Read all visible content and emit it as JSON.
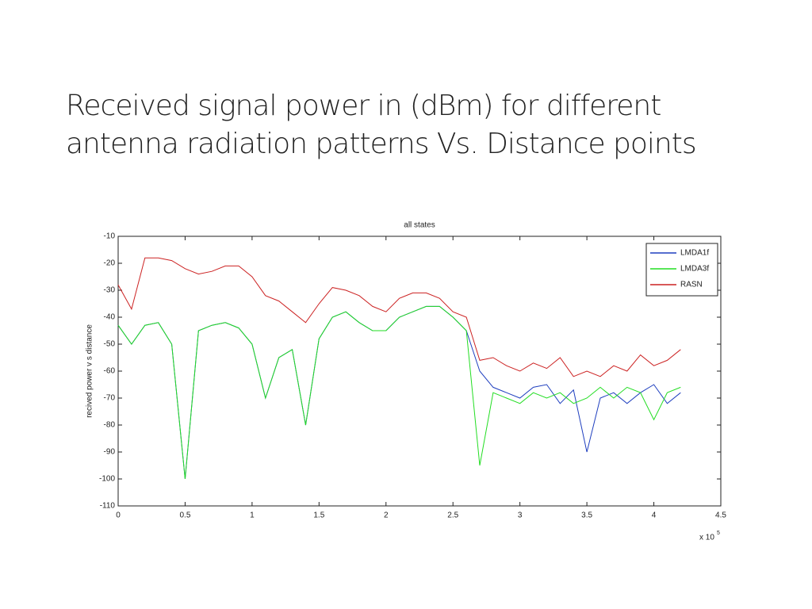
{
  "slide": {
    "title_lines": [
      "Received signal power in (dBm) for different",
      "antenna radiation patterns Vs.  Distance points"
    ]
  },
  "chart_data": {
    "type": "line",
    "title": "all states",
    "ylabel": "recived power v s distance",
    "x_multiplier": "x 10",
    "x_multiplier_exponent": "5",
    "x": [
      0,
      0.1,
      0.2,
      0.3,
      0.4,
      0.5,
      0.6,
      0.7,
      0.8,
      0.9,
      1.0,
      1.1,
      1.2,
      1.3,
      1.4,
      1.5,
      1.6,
      1.7,
      1.8,
      1.9,
      2.0,
      2.1,
      2.2,
      2.3,
      2.4,
      2.5,
      2.6,
      2.7,
      2.8,
      2.9,
      3.0,
      3.1,
      3.2,
      3.3,
      3.4,
      3.5,
      3.6,
      3.7,
      3.8,
      3.9,
      4.0,
      4.1,
      4.2
    ],
    "series": [
      {
        "name": "LMDA1f",
        "color": "#1f3fbf",
        "values": [
          -43,
          -50,
          -43,
          -42,
          -50,
          -100,
          -45,
          -43,
          -42,
          -44,
          -50,
          -70,
          -55,
          -52,
          -80,
          -48,
          -40,
          -38,
          -42,
          -45,
          -45,
          -40,
          -38,
          -36,
          -36,
          -40,
          -45,
          -60,
          -66,
          -68,
          -70,
          -66,
          -65,
          -72,
          -67,
          -90,
          -70,
          -68,
          -72,
          -68,
          -65,
          -72,
          -68
        ]
      },
      {
        "name": "LMDA3f",
        "color": "#22dd22",
        "values": [
          -43,
          -50,
          -43,
          -42,
          -50,
          -100,
          -45,
          -43,
          -42,
          -44,
          -50,
          -70,
          -55,
          -52,
          -80,
          -48,
          -40,
          -38,
          -42,
          -45,
          -45,
          -40,
          -38,
          -36,
          -36,
          -40,
          -45,
          -95,
          -68,
          -70,
          -72,
          -68,
          -70,
          -68,
          -72,
          -70,
          -66,
          -70,
          -66,
          -68,
          -78,
          -68,
          -66
        ]
      },
      {
        "name": "RASN",
        "color": "#cc2222",
        "values": [
          -28,
          -37,
          -18,
          -18,
          -19,
          -22,
          -24,
          -23,
          -21,
          -21,
          -25,
          -32,
          -34,
          -38,
          -42,
          -35,
          -29,
          -30,
          -32,
          -36,
          -38,
          -33,
          -31,
          -31,
          -33,
          -38,
          -40,
          -56,
          -55,
          -58,
          -60,
          -57,
          -59,
          -55,
          -62,
          -60,
          -62,
          -58,
          -60,
          -54,
          -58,
          -56,
          -52
        ]
      }
    ],
    "xlim": [
      0,
      4.5
    ],
    "xticks": [
      0,
      0.5,
      1,
      1.5,
      2,
      2.5,
      3,
      3.5,
      4,
      4.5
    ],
    "ylim": [
      -110,
      -10
    ],
    "yticks": [
      -110,
      -100,
      -90,
      -80,
      -70,
      -60,
      -50,
      -40,
      -30,
      -20,
      -10
    ],
    "grid": false,
    "legend": "upper right"
  }
}
